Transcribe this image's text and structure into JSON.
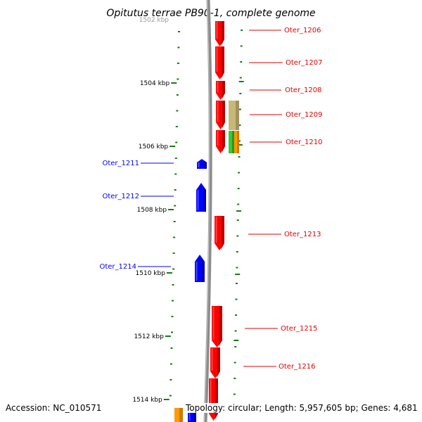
{
  "title": "Opitutus terrae PB90-1, complete genome",
  "footer": {
    "accession": "Accession: NC_010571",
    "summary": "Topology: circular; Length: 5,957,605 bp; Genes: 4,681"
  },
  "colors": {
    "forward_gene": "#ff0000",
    "reverse_gene": "#0000ff",
    "backbone": "#8c8c8c",
    "tick": "#1a7a1a",
    "other_feature_olive": "#c8b878",
    "other_feature_orange": "#ff9a00",
    "other_feature_green": "#33cc33"
  },
  "scale": {
    "unit": "kbp",
    "labels": [
      "1504 kbp",
      "1506 kbp",
      "1508 kbp",
      "1510 kbp",
      "1512 kbp",
      "1514 kbp"
    ],
    "partial_top_label": "1502 kbp"
  },
  "genes": [
    {
      "label": "Oter_1206",
      "strand": "forward"
    },
    {
      "label": "Oter_1207",
      "strand": "forward"
    },
    {
      "label": "Oter_1208",
      "strand": "forward"
    },
    {
      "label": "Oter_1209",
      "strand": "forward"
    },
    {
      "label": "Oter_1210",
      "strand": "forward"
    },
    {
      "label": "Oter_1211",
      "strand": "reverse"
    },
    {
      "label": "Oter_1212",
      "strand": "reverse"
    },
    {
      "label": "Oter_1213",
      "strand": "forward"
    },
    {
      "label": "Oter_1214",
      "strand": "reverse"
    },
    {
      "label": "Oter_1215",
      "strand": "forward"
    },
    {
      "label": "Oter_1216",
      "strand": "forward"
    }
  ]
}
